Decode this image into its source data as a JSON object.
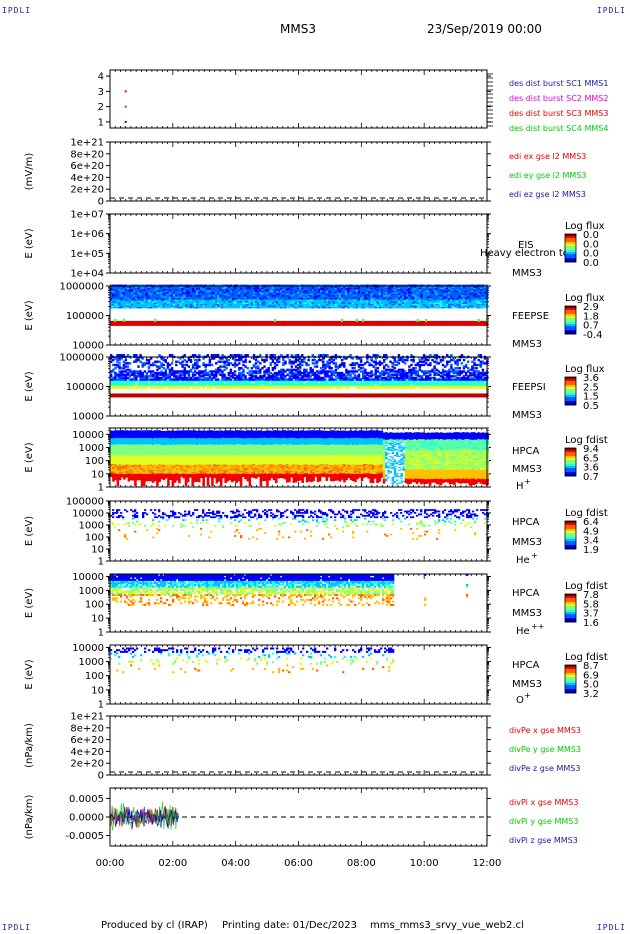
{
  "corner_label": "IPDLI",
  "header": {
    "spacecraft": "MMS3",
    "date_time": "23/Sep/2019 00:00"
  },
  "footer": {
    "produced_by": "Produced by cl (IRAP)",
    "printing_date": "Printing date: 01/Dec/2023",
    "script_name": "mms_mms3_srvy_vue_web2.cl"
  },
  "colors": {
    "blue": "#0000c8",
    "magenta": "#e600e6",
    "red": "#e60000",
    "green": "#00cc00",
    "text_dark_blue": "#1a1aa6"
  },
  "chart_data": [
    {
      "id": "des-dist",
      "type": "scatter",
      "yticks": [
        "1",
        "2",
        "3",
        "4"
      ],
      "ylim": [
        0.6,
        4.4
      ],
      "series": [
        {
          "name": "des dist burst SC1 MMS1",
          "color": "#1a1aa6"
        },
        {
          "name": "des dist burst SC2 MMS2",
          "color": "#e600e6"
        },
        {
          "name": "des dist burst SC3 MMS3",
          "color": "#e60000"
        },
        {
          "name": "des dist burst SC4 MMS4",
          "color": "#00cc00"
        }
      ],
      "points": [
        {
          "x": "00:30",
          "y": 3,
          "color": "#e60000"
        },
        {
          "x": "00:30",
          "y": 2,
          "color": "#e600e6"
        },
        {
          "x": "00:30",
          "y": 1,
          "color": "#1a1aa6"
        }
      ]
    },
    {
      "id": "edi",
      "type": "line",
      "ylabel": "(mV/m)",
      "yticks": [
        "0",
        "2e+20",
        "4e+20",
        "6e+20",
        "8e+20",
        "1e+21"
      ],
      "ylim": [
        0,
        1e+21
      ],
      "zero_line": true,
      "series": [
        {
          "name": "edi ex gse l2 MMS3",
          "color": "#e60000"
        },
        {
          "name": "edi ey gse l2 MMS3",
          "color": "#00cc00"
        },
        {
          "name": "edi ez gse l2 MMS3",
          "color": "#1a1aa6"
        }
      ]
    },
    {
      "id": "eis",
      "type": "heatmap",
      "ylabel": "E (eV)",
      "log_y": true,
      "yticks": [
        "1e+04",
        "1e+05",
        "1e+06",
        "1e+07"
      ],
      "ylim": [
        10000.0,
        10000000.0
      ],
      "instrument": "EIS",
      "spacecraft": "MMS3",
      "overlay_text": "Heavy electron tof",
      "colorbar_title": "Log flux",
      "colorbar_ticks": [
        "0.0",
        "0.0",
        "0.0",
        "0.0"
      ]
    },
    {
      "id": "feepse",
      "type": "heatmap",
      "ylabel": "E (eV)",
      "log_y": true,
      "yticks": [
        "10000",
        "100000",
        "1000000"
      ],
      "ylim": [
        10000,
        1000000
      ],
      "instrument": "FEEPSE",
      "spacecraft": "MMS3",
      "colorbar_title": "Log flux",
      "colorbar_ticks": [
        "2.9",
        "1.8",
        "0.7",
        "-0.4"
      ],
      "time_range": [
        "00:00",
        "12:00"
      ]
    },
    {
      "id": "feepsi",
      "type": "heatmap",
      "ylabel": "E (eV)",
      "log_y": true,
      "yticks": [
        "10000",
        "100000",
        "1000000"
      ],
      "ylim": [
        10000,
        1000000
      ],
      "instrument": "FEEPSI",
      "spacecraft": "MMS3",
      "colorbar_title": "Log flux",
      "colorbar_ticks": [
        "3.6",
        "2.5",
        "1.5",
        "0.5"
      ],
      "time_range": [
        "00:00",
        "12:00"
      ]
    },
    {
      "id": "hpca-h",
      "type": "heatmap",
      "ylabel": "E (eV)",
      "log_y": true,
      "yticks": [
        "1",
        "10",
        "100",
        "1000",
        "10000"
      ],
      "ylim": [
        1,
        30000
      ],
      "instrument": "HPCA",
      "spacecraft": "MMS3",
      "species": "H",
      "charge": "+",
      "colorbar_title": "Log fdist",
      "colorbar_ticks": [
        "9.4",
        "6.5",
        "3.6",
        "0.7"
      ],
      "time_range": [
        "00:00",
        "12:00"
      ]
    },
    {
      "id": "hpca-he",
      "type": "heatmap",
      "ylabel": "E (eV)",
      "log_y": true,
      "yticks": [
        "1",
        "10",
        "100",
        "1000",
        "10000",
        "100000"
      ],
      "ylim": [
        1,
        100000
      ],
      "instrument": "HPCA",
      "spacecraft": "MMS3",
      "species": "He",
      "charge": "+",
      "colorbar_title": "Log fdist",
      "colorbar_ticks": [
        "6.4",
        "4.9",
        "3.4",
        "1.9"
      ],
      "time_range": [
        "00:00",
        "12:00"
      ]
    },
    {
      "id": "hpca-he2",
      "type": "heatmap",
      "ylabel": "E (eV)",
      "log_y": true,
      "yticks": [
        "1",
        "10",
        "100",
        "1000",
        "10000"
      ],
      "ylim": [
        1,
        15000
      ],
      "instrument": "HPCA",
      "spacecraft": "MMS3",
      "species": "He",
      "charge": "++",
      "colorbar_title": "Log fdist",
      "colorbar_ticks": [
        "7.8",
        "5.8",
        "3.7",
        "1.6"
      ],
      "time_range": [
        "00:00",
        "09:00"
      ]
    },
    {
      "id": "hpca-o",
      "type": "heatmap",
      "ylabel": "E (eV)",
      "log_y": true,
      "yticks": [
        "1",
        "10",
        "100",
        "1000",
        "10000"
      ],
      "ylim": [
        1,
        15000
      ],
      "instrument": "HPCA",
      "spacecraft": "MMS3",
      "species": "O",
      "charge": "+",
      "colorbar_title": "Log fdist",
      "colorbar_ticks": [
        "8.7",
        "6.9",
        "5.0",
        "3.2"
      ],
      "time_range": [
        "00:00",
        "09:00"
      ]
    },
    {
      "id": "divpe",
      "type": "line",
      "ylabel": "(nPa/km)",
      "yticks": [
        "0",
        "2e+20",
        "4e+20",
        "6e+20",
        "8e+20",
        "1e+21"
      ],
      "ylim": [
        0,
        1e+21
      ],
      "zero_line": true,
      "series": [
        {
          "name": "divPe x gse MMS3",
          "color": "#e60000"
        },
        {
          "name": "divPe y gse MMS3",
          "color": "#00cc00"
        },
        {
          "name": "divPe z gse MMS3",
          "color": "#1a1aa6"
        }
      ]
    },
    {
      "id": "divpi",
      "type": "line",
      "ylabel": "(nPa/km)",
      "yticks": [
        "-0.0005",
        "0.0000",
        "0.0005"
      ],
      "ylim": [
        -0.00078,
        0.00078
      ],
      "zero_line": true,
      "time_range": [
        "00:00",
        "02:12"
      ],
      "series": [
        {
          "name": "divPi x gse MMS3",
          "color": "#e60000"
        },
        {
          "name": "divPi y gse MMS3",
          "color": "#00cc00"
        },
        {
          "name": "divPi z gse MMS3",
          "color": "#1a1aa6"
        }
      ]
    }
  ],
  "x_axis": {
    "ticks": [
      "00:00",
      "02:00",
      "04:00",
      "06:00",
      "08:00",
      "10:00",
      "12:00"
    ],
    "range": [
      "00:00",
      "12:00"
    ]
  }
}
